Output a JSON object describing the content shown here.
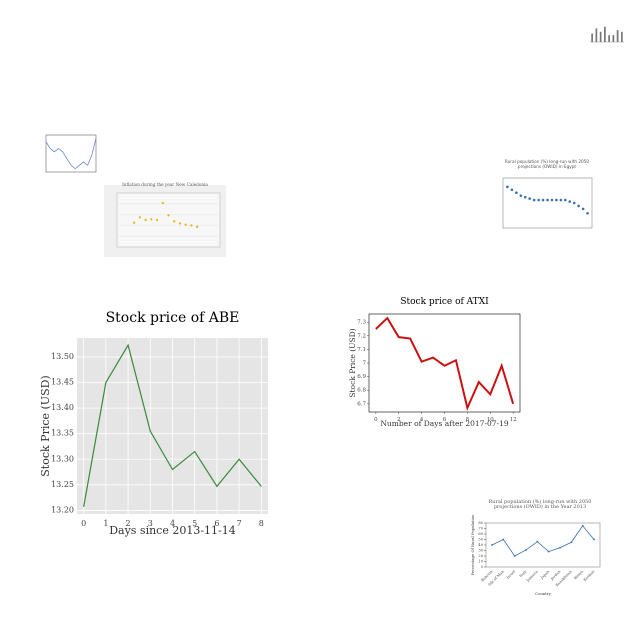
{
  "chart_data": [
    {
      "type": "line",
      "title": "Stock price of ABE",
      "xlabel": "Days since 2013-11-14",
      "ylabel": "Stock Price (USD)",
      "x": [
        0,
        1,
        2,
        3,
        4,
        5,
        6,
        7,
        8
      ],
      "values": [
        13.207,
        13.45,
        13.523,
        13.355,
        13.28,
        13.315,
        13.247,
        13.3,
        13.247
      ],
      "color": "#3a8a3a",
      "xlim": [
        -0.3,
        8.3
      ],
      "ylim": [
        13.193,
        13.537
      ],
      "xticks": [
        0,
        1,
        2,
        3,
        4,
        5,
        6,
        7,
        8
      ],
      "yticks": [
        {
          "value": 13.2,
          "label": "13.20"
        },
        {
          "value": 13.25,
          "label": "13.25"
        },
        {
          "value": 13.3,
          "label": "13.30"
        },
        {
          "value": 13.35,
          "label": "13.35"
        },
        {
          "value": 13.4,
          "label": "13.40"
        },
        {
          "value": 13.45,
          "label": "13.45"
        },
        {
          "value": 13.5,
          "label": "13.50"
        }
      ],
      "grid": true
    },
    {
      "type": "line",
      "title": "Stock price of ATXI",
      "xlabel": "Number of Days after 2017-07-19",
      "ylabel": "Stock Price (USD)",
      "x": [
        0,
        1,
        2,
        3,
        4,
        5,
        6,
        7,
        8,
        9,
        10,
        11,
        12
      ],
      "values": [
        7.25,
        7.33,
        7.19,
        7.18,
        7.01,
        7.04,
        6.98,
        7.02,
        6.67,
        6.86,
        6.77,
        6.98,
        6.7
      ],
      "color": "#cc1111",
      "xlim": [
        -0.6,
        12.6
      ],
      "ylim": [
        6.64,
        7.36
      ],
      "xticks": [
        0,
        2,
        4,
        6,
        8,
        10,
        12
      ],
      "yticks": [
        6.7,
        6.8,
        6.9,
        7.0,
        7.1,
        7.2,
        7.3
      ],
      "grid": false
    },
    {
      "type": "scatter",
      "title": "Rural population (%) long-run with 2050 projections (OWID) in Egypt",
      "x": [
        1960,
        1965,
        1970,
        1975,
        1980,
        1985,
        1990,
        1995,
        2000,
        2005,
        2010,
        2015,
        2020,
        2025,
        2030,
        2035,
        2040,
        2045,
        2050
      ],
      "values": [
        62,
        61,
        60,
        59,
        58.5,
        58,
        57.5,
        57.5,
        57.5,
        57.5,
        57.5,
        57.5,
        57.5,
        57.5,
        57,
        56.5,
        55.5,
        54.5,
        53
      ],
      "color": "#3a6fb0",
      "xlim": [
        1955,
        2055
      ],
      "ylim": [
        48,
        65
      ],
      "grid": false
    },
    {
      "type": "line",
      "title": "Rural population (%) long-run with 2050 projections (OWID) in the Year 2013",
      "xlabel": "Country",
      "ylabel": "Percentage Of Rural Population",
      "categories": [
        "Bahrain",
        "Isle of Man",
        "Israel",
        "Italy",
        "Jamaica",
        "Japan",
        "Jordan",
        "Kazakhstan",
        "Kenya",
        "Kiribati"
      ],
      "values": [
        40,
        50,
        20,
        31,
        46,
        28,
        35,
        45,
        75,
        50
      ],
      "color": "#3a6fb0",
      "ylim": [
        0,
        80
      ],
      "yticks": [
        0,
        10,
        20,
        30,
        40,
        50,
        60,
        70,
        80
      ],
      "grid": false
    },
    {
      "type": "scatter",
      "title": "Inflation during the year New Caledonia",
      "x": [
        2006,
        2007,
        2008,
        2009,
        2010,
        2011,
        2012,
        2013,
        2014,
        2015,
        2016,
        2017
      ],
      "values": [
        1.6,
        2.4,
        2.0,
        2.1,
        2.0,
        4.5,
        2.7,
        1.8,
        1.5,
        1.3,
        1.2,
        1.0
      ],
      "color": "#e8b830",
      "xlim": [
        2003,
        2021
      ],
      "ylim": [
        -2,
        6
      ],
      "grid": true
    },
    {
      "type": "line",
      "x": [
        0,
        1,
        2,
        3,
        4,
        5,
        6,
        7,
        8,
        9,
        10,
        11,
        12
      ],
      "values": [
        8,
        6,
        5,
        6,
        5,
        3,
        1,
        0,
        1,
        2,
        1,
        4,
        9
      ],
      "color": "#6f86d6",
      "xlim": [
        0,
        12
      ],
      "ylim": [
        -1,
        10
      ],
      "grid": false
    },
    {
      "type": "bar",
      "categories": [
        null,
        null,
        null,
        null,
        null,
        null,
        null,
        null
      ],
      "values": [
        5,
        8,
        6,
        9,
        4,
        4,
        7,
        6
      ],
      "color": "#777777",
      "ylim": [
        0,
        10
      ],
      "grid": false
    }
  ]
}
